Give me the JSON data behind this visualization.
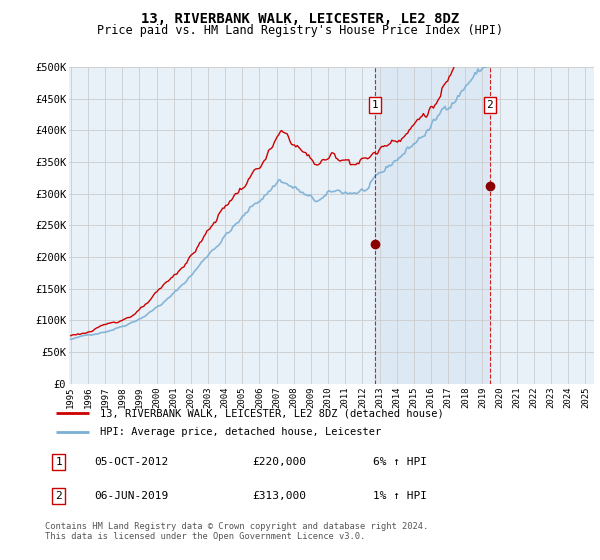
{
  "title": "13, RIVERBANK WALK, LEICESTER, LE2 8DZ",
  "subtitle": "Price paid vs. HM Land Registry's House Price Index (HPI)",
  "legend_line1": "13, RIVERBANK WALK, LEICESTER, LE2 8DZ (detached house)",
  "legend_line2": "HPI: Average price, detached house, Leicester",
  "footer": "Contains HM Land Registry data © Crown copyright and database right 2024.\nThis data is licensed under the Open Government Licence v3.0.",
  "transactions": [
    {
      "label": "1",
      "date": "05-OCT-2012",
      "price": "£220,000",
      "year": 2012.75,
      "price_val": 220000,
      "hpi_pct": "6% ↑ HPI"
    },
    {
      "label": "2",
      "date": "06-JUN-2019",
      "price": "£313,000",
      "year": 2019.42,
      "price_val": 313000,
      "hpi_pct": "1% ↑ HPI"
    }
  ],
  "ylim": [
    0,
    500000
  ],
  "xlim": [
    1994.9,
    2025.5
  ],
  "yticks": [
    0,
    50000,
    100000,
    150000,
    200000,
    250000,
    300000,
    350000,
    400000,
    450000,
    500000
  ],
  "ytick_labels": [
    "£0",
    "£50K",
    "£100K",
    "£150K",
    "£200K",
    "£250K",
    "£300K",
    "£350K",
    "£400K",
    "£450K",
    "£500K"
  ],
  "hpi_color": "#7bafd4",
  "price_color": "#cc0000",
  "shade_color": "#dce9f5",
  "grid_color": "#cccccc",
  "background_color": "#e8f0f8",
  "marker_color": "#8b0000"
}
